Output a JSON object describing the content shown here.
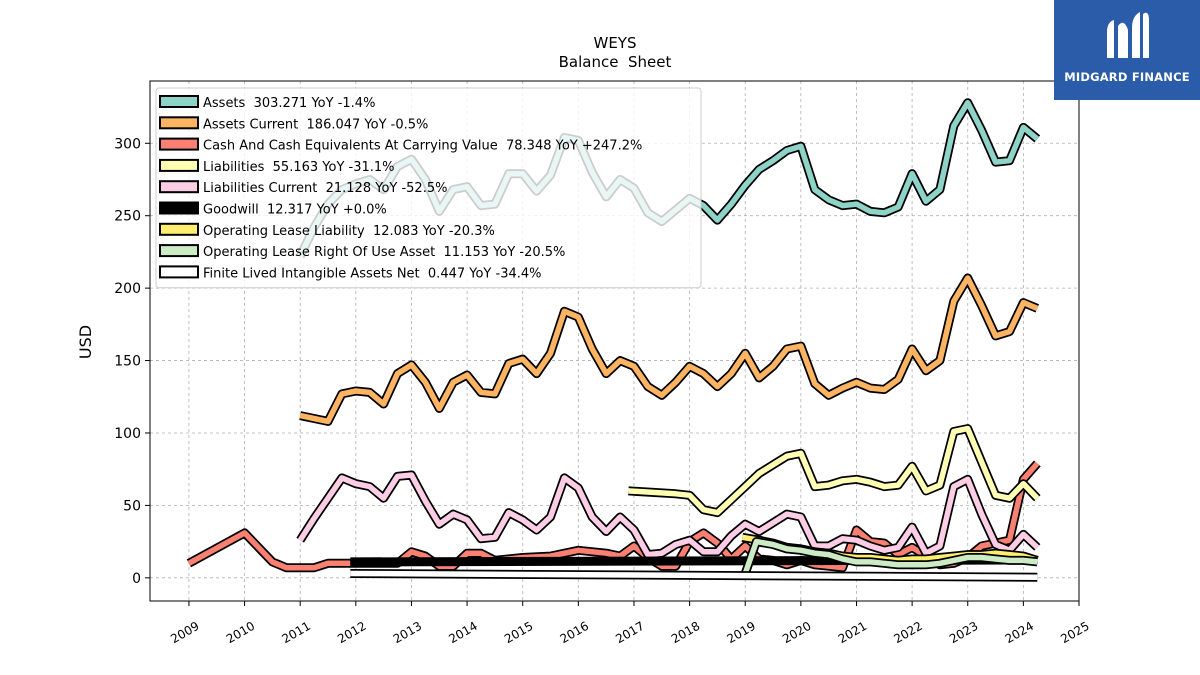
{
  "brand": {
    "name": "MIDGARD FINANCE",
    "logo_icon": "midgard-m-icon",
    "color": "#2a5caa"
  },
  "chart_data": {
    "type": "line",
    "title": "WEYS",
    "subtitle": "Balance  Sheet",
    "xlabel": "",
    "ylabel": "USD",
    "xlim": [
      2008.3,
      2025.0
    ],
    "ylim": [
      -16,
      343
    ],
    "x_ticks": [
      "2009",
      "2010",
      "2011",
      "2012",
      "2013",
      "2014",
      "2015",
      "2016",
      "2017",
      "2018",
      "2019",
      "2020",
      "2021",
      "2022",
      "2023",
      "2024",
      "2025"
    ],
    "y_ticks": [
      0,
      50,
      100,
      150,
      200,
      250,
      300
    ],
    "grid": true,
    "legend_position": "top-left",
    "series": [
      {
        "name": "Assets",
        "legend": "Assets  303.271 YoY -1.4%",
        "color": "#8dd3c7",
        "points": [
          [
            2011.0,
            222
          ],
          [
            2011.25,
            242
          ],
          [
            2011.5,
            258
          ],
          [
            2011.75,
            268
          ],
          [
            2012.0,
            272
          ],
          [
            2012.25,
            275
          ],
          [
            2012.5,
            268
          ],
          [
            2012.75,
            284
          ],
          [
            2013.0,
            289
          ],
          [
            2013.25,
            275
          ],
          [
            2013.5,
            253
          ],
          [
            2013.75,
            268
          ],
          [
            2014.0,
            270
          ],
          [
            2014.25,
            257
          ],
          [
            2014.5,
            258
          ],
          [
            2014.75,
            279
          ],
          [
            2015.0,
            279
          ],
          [
            2015.25,
            267
          ],
          [
            2015.5,
            278
          ],
          [
            2015.75,
            304
          ],
          [
            2016.0,
            302
          ],
          [
            2016.25,
            280
          ],
          [
            2016.5,
            263
          ],
          [
            2016.75,
            275
          ],
          [
            2017.0,
            269
          ],
          [
            2017.25,
            252
          ],
          [
            2017.5,
            246
          ],
          [
            2017.75,
            254
          ],
          [
            2018.0,
            262
          ],
          [
            2018.25,
            257
          ],
          [
            2018.5,
            247
          ],
          [
            2018.75,
            258
          ],
          [
            2019.0,
            271
          ],
          [
            2019.25,
            282
          ],
          [
            2019.5,
            288
          ],
          [
            2019.75,
            295
          ],
          [
            2020.0,
            298
          ],
          [
            2020.25,
            268
          ],
          [
            2020.5,
            261
          ],
          [
            2020.75,
            257
          ],
          [
            2021.0,
            258
          ],
          [
            2021.25,
            253
          ],
          [
            2021.5,
            252
          ],
          [
            2021.75,
            256
          ],
          [
            2022.0,
            279
          ],
          [
            2022.25,
            260
          ],
          [
            2022.5,
            268
          ],
          [
            2022.75,
            312
          ],
          [
            2023.0,
            328
          ],
          [
            2023.25,
            309
          ],
          [
            2023.5,
            287
          ],
          [
            2023.75,
            288
          ],
          [
            2024.0,
            311
          ],
          [
            2024.25,
            303
          ]
        ]
      },
      {
        "name": "Assets Current",
        "legend": "Assets Current  186.047 YoY -0.5%",
        "color": "#fdb462",
        "points": [
          [
            2011.0,
            112
          ],
          [
            2011.25,
            110
          ],
          [
            2011.5,
            108
          ],
          [
            2011.75,
            127
          ],
          [
            2012.0,
            129
          ],
          [
            2012.25,
            128
          ],
          [
            2012.5,
            120
          ],
          [
            2012.75,
            141
          ],
          [
            2013.0,
            147
          ],
          [
            2013.25,
            135
          ],
          [
            2013.5,
            117
          ],
          [
            2013.75,
            135
          ],
          [
            2014.0,
            140
          ],
          [
            2014.25,
            128
          ],
          [
            2014.5,
            127
          ],
          [
            2014.75,
            148
          ],
          [
            2015.0,
            151
          ],
          [
            2015.25,
            141
          ],
          [
            2015.5,
            155
          ],
          [
            2015.75,
            184
          ],
          [
            2016.0,
            180
          ],
          [
            2016.25,
            158
          ],
          [
            2016.5,
            141
          ],
          [
            2016.75,
            150
          ],
          [
            2017.0,
            146
          ],
          [
            2017.25,
            132
          ],
          [
            2017.5,
            126
          ],
          [
            2017.75,
            135
          ],
          [
            2018.0,
            146
          ],
          [
            2018.25,
            141
          ],
          [
            2018.5,
            132
          ],
          [
            2018.75,
            141
          ],
          [
            2019.0,
            155
          ],
          [
            2019.25,
            138
          ],
          [
            2019.5,
            146
          ],
          [
            2019.75,
            158
          ],
          [
            2020.0,
            160
          ],
          [
            2020.25,
            134
          ],
          [
            2020.5,
            126
          ],
          [
            2020.75,
            131
          ],
          [
            2021.0,
            135
          ],
          [
            2021.25,
            131
          ],
          [
            2021.5,
            130
          ],
          [
            2021.75,
            137
          ],
          [
            2022.0,
            158
          ],
          [
            2022.25,
            143
          ],
          [
            2022.5,
            150
          ],
          [
            2022.75,
            191
          ],
          [
            2023.0,
            207
          ],
          [
            2023.25,
            188
          ],
          [
            2023.5,
            167
          ],
          [
            2023.75,
            170
          ],
          [
            2024.0,
            190
          ],
          [
            2024.25,
            186
          ]
        ]
      },
      {
        "name": "Cash And Cash Equivalents At Carrying Value",
        "legend": "Cash And Cash Equivalents At Carrying Value  78.348 YoY +247.2%",
        "color": "#fb8072",
        "points": [
          [
            2009.0,
            10
          ],
          [
            2010.0,
            31
          ],
          [
            2010.5,
            11
          ],
          [
            2010.75,
            7
          ],
          [
            2011.0,
            7
          ],
          [
            2011.25,
            7
          ],
          [
            2011.5,
            10
          ],
          [
            2012.0,
            10
          ],
          [
            2012.75,
            10
          ],
          [
            2013.0,
            18
          ],
          [
            2013.25,
            15
          ],
          [
            2013.5,
            8
          ],
          [
            2013.75,
            8
          ],
          [
            2014.0,
            17
          ],
          [
            2014.25,
            17
          ],
          [
            2014.5,
            12
          ],
          [
            2015.0,
            14
          ],
          [
            2015.5,
            15
          ],
          [
            2016.0,
            19
          ],
          [
            2016.5,
            17
          ],
          [
            2016.75,
            15
          ],
          [
            2017.0,
            22
          ],
          [
            2017.25,
            14
          ],
          [
            2017.5,
            8
          ],
          [
            2017.75,
            8
          ],
          [
            2018.0,
            25
          ],
          [
            2018.25,
            31
          ],
          [
            2018.5,
            24
          ],
          [
            2018.75,
            13
          ],
          [
            2019.0,
            22
          ],
          [
            2019.25,
            13
          ],
          [
            2019.5,
            12
          ],
          [
            2019.75,
            9
          ],
          [
            2020.0,
            12
          ],
          [
            2020.25,
            9
          ],
          [
            2020.5,
            8
          ],
          [
            2020.75,
            7
          ],
          [
            2021.0,
            33
          ],
          [
            2021.25,
            25
          ],
          [
            2021.5,
            24
          ],
          [
            2021.75,
            16
          ],
          [
            2022.0,
            21
          ],
          [
            2022.25,
            15
          ],
          [
            2022.5,
            9
          ],
          [
            2022.75,
            10
          ],
          [
            2023.0,
            14
          ],
          [
            2023.25,
            22
          ],
          [
            2023.5,
            24
          ],
          [
            2023.75,
            26
          ],
          [
            2024.0,
            68
          ],
          [
            2024.25,
            79
          ]
        ]
      },
      {
        "name": "Liabilities",
        "legend": "Liabilities  55.163 YoY -31.1%",
        "color": "#ffffb3",
        "points": [
          [
            2016.9,
            60
          ],
          [
            2017.75,
            58
          ],
          [
            2018.0,
            57
          ],
          [
            2018.25,
            47
          ],
          [
            2018.5,
            45
          ],
          [
            2018.75,
            54
          ],
          [
            2019.0,
            63
          ],
          [
            2019.25,
            72
          ],
          [
            2019.5,
            78
          ],
          [
            2019.75,
            84
          ],
          [
            2020.0,
            86
          ],
          [
            2020.25,
            63
          ],
          [
            2020.5,
            64
          ],
          [
            2020.75,
            67
          ],
          [
            2021.0,
            68
          ],
          [
            2021.25,
            66
          ],
          [
            2021.5,
            63
          ],
          [
            2021.75,
            64
          ],
          [
            2022.0,
            77
          ],
          [
            2022.25,
            60
          ],
          [
            2022.5,
            64
          ],
          [
            2022.75,
            101
          ],
          [
            2023.0,
            103
          ],
          [
            2023.25,
            80
          ],
          [
            2023.5,
            57
          ],
          [
            2023.75,
            55
          ],
          [
            2024.0,
            65
          ],
          [
            2024.25,
            55
          ]
        ]
      },
      {
        "name": "Liabilities Current",
        "legend": "Liabilities Current  21.128 YoY -52.5%",
        "color": "#fccde5",
        "points": [
          [
            2011.0,
            26
          ],
          [
            2011.25,
            41
          ],
          [
            2011.5,
            55
          ],
          [
            2011.75,
            69
          ],
          [
            2012.0,
            65
          ],
          [
            2012.25,
            63
          ],
          [
            2012.5,
            55
          ],
          [
            2012.75,
            70
          ],
          [
            2013.0,
            71
          ],
          [
            2013.25,
            53
          ],
          [
            2013.5,
            37
          ],
          [
            2013.75,
            44
          ],
          [
            2014.0,
            40
          ],
          [
            2014.25,
            27
          ],
          [
            2014.5,
            28
          ],
          [
            2014.75,
            45
          ],
          [
            2015.0,
            40
          ],
          [
            2015.25,
            33
          ],
          [
            2015.5,
            42
          ],
          [
            2015.75,
            69
          ],
          [
            2016.0,
            62
          ],
          [
            2016.25,
            42
          ],
          [
            2016.5,
            32
          ],
          [
            2016.75,
            42
          ],
          [
            2017.0,
            33
          ],
          [
            2017.25,
            16
          ],
          [
            2017.5,
            17
          ],
          [
            2017.75,
            23
          ],
          [
            2018.0,
            26
          ],
          [
            2018.25,
            18
          ],
          [
            2018.5,
            18
          ],
          [
            2018.75,
            29
          ],
          [
            2019.0,
            37
          ],
          [
            2019.25,
            32
          ],
          [
            2019.5,
            38
          ],
          [
            2019.75,
            44
          ],
          [
            2020.0,
            42
          ],
          [
            2020.25,
            22
          ],
          [
            2020.5,
            22
          ],
          [
            2020.75,
            27
          ],
          [
            2021.0,
            26
          ],
          [
            2021.25,
            22
          ],
          [
            2021.5,
            19
          ],
          [
            2021.75,
            21
          ],
          [
            2022.0,
            35
          ],
          [
            2022.25,
            17
          ],
          [
            2022.5,
            22
          ],
          [
            2022.75,
            63
          ],
          [
            2023.0,
            68
          ],
          [
            2023.25,
            44
          ],
          [
            2023.5,
            23
          ],
          [
            2023.75,
            19
          ],
          [
            2024.0,
            30
          ],
          [
            2024.25,
            21
          ]
        ]
      },
      {
        "name": "Goodwill",
        "legend": "Goodwill  12.317 YoY +0.0%",
        "color": "#000000",
        "points": [
          [
            2011.9,
            11
          ],
          [
            2024.25,
            12.3
          ]
        ]
      },
      {
        "name": "Operating Lease Liability",
        "legend": "Operating Lease Liability  12.083 YoY -20.3%",
        "color": "#ffed6f",
        "points": [
          [
            2018.95,
            28
          ],
          [
            2019.25,
            26
          ],
          [
            2019.5,
            24
          ],
          [
            2019.75,
            21
          ],
          [
            2020.0,
            20
          ],
          [
            2020.25,
            18
          ],
          [
            2020.5,
            17
          ],
          [
            2020.75,
            15
          ],
          [
            2021.0,
            14
          ],
          [
            2021.25,
            14
          ],
          [
            2021.5,
            13
          ],
          [
            2021.75,
            12
          ],
          [
            2022.0,
            13
          ],
          [
            2022.25,
            13
          ],
          [
            2022.5,
            14
          ],
          [
            2022.75,
            15
          ],
          [
            2023.0,
            16
          ],
          [
            2023.25,
            16
          ],
          [
            2023.5,
            17
          ],
          [
            2023.75,
            16
          ],
          [
            2024.0,
            15
          ],
          [
            2024.25,
            12
          ]
        ]
      },
      {
        "name": "Operating Lease Right Of Use Asset",
        "legend": "Operating Lease Right Of Use Asset  11.153 YoY -20.5%",
        "color": "#ccebc5",
        "points": [
          [
            2019.0,
            3
          ],
          [
            2019.2,
            25
          ],
          [
            2019.5,
            23
          ],
          [
            2019.75,
            20
          ],
          [
            2020.0,
            19
          ],
          [
            2020.25,
            17
          ],
          [
            2020.5,
            16
          ],
          [
            2020.75,
            13
          ],
          [
            2021.0,
            11
          ],
          [
            2021.25,
            11
          ],
          [
            2021.5,
            10
          ],
          [
            2021.75,
            9
          ],
          [
            2022.0,
            9
          ],
          [
            2022.25,
            9
          ],
          [
            2022.5,
            10
          ],
          [
            2022.75,
            12
          ],
          [
            2023.0,
            14
          ],
          [
            2023.25,
            14
          ],
          [
            2023.5,
            13
          ],
          [
            2023.75,
            12
          ],
          [
            2024.0,
            12
          ],
          [
            2024.25,
            11
          ]
        ]
      },
      {
        "name": "Finite Lived Intangible Assets Net",
        "legend": "Finite Lived Intangible Assets Net  0.447 YoY -34.4%",
        "color": "#ffffff",
        "points": [
          [
            2011.9,
            3
          ],
          [
            2024.25,
            0.4
          ]
        ]
      }
    ]
  }
}
